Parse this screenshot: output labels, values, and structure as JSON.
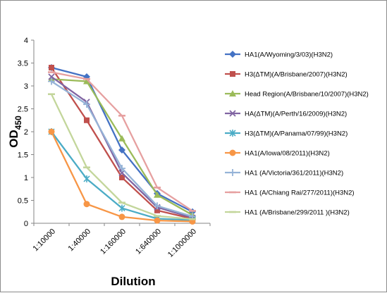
{
  "chart_data": {
    "type": "line",
    "categories": [
      "1:10000",
      "1:40000",
      "1:160000",
      "1:640000",
      "1:1000000"
    ],
    "ylim": [
      0,
      4
    ],
    "yticks": [
      "0",
      "0.5",
      "1",
      "1.5",
      "2",
      "2.5",
      "3",
      "3.5",
      "4"
    ],
    "xlabel": "Dilution",
    "ylabel": "OD",
    "ylabel_sub": "450",
    "grid": false,
    "legend_position": "right",
    "series": [
      {
        "name": "HA1(A/Wyoming/3/03)(H3N2)",
        "color": "#4472c4",
        "marker": "diamond",
        "values": [
          3.4,
          3.2,
          1.6,
          0.65,
          0.25
        ]
      },
      {
        "name": "H3(ΔTM)(A/Brisbane/2007)(H3N2)",
        "color": "#c0504d",
        "marker": "square",
        "values": [
          3.4,
          2.25,
          1.0,
          0.28,
          0.1
        ]
      },
      {
        "name": "Head Region(A/Brisbane/10/2007)(H3N2)",
        "color": "#9bbb59",
        "marker": "triangle",
        "values": [
          3.15,
          3.1,
          1.85,
          0.62,
          0.18
        ]
      },
      {
        "name": "HA(ΔTM)(A/Perth/16/2009)(H3N2)",
        "color": "#8064a2",
        "marker": "x",
        "values": [
          3.2,
          2.65,
          1.1,
          0.35,
          0.12
        ]
      },
      {
        "name": "H3(ΔTM)(A/Panama/07/99)(H3N2)",
        "color": "#4bacc6",
        "marker": "star",
        "values": [
          2.0,
          0.97,
          0.33,
          0.1,
          0.07
        ]
      },
      {
        "name": "HA1(A/Iowa/08/2011)(H3N2)",
        "color": "#f79646",
        "marker": "circle",
        "values": [
          2.0,
          0.42,
          0.14,
          0.06,
          0.04
        ]
      },
      {
        "name": "HA1 (A/Victoria/361/2011)(H3N2)",
        "color": "#95b3d7",
        "marker": "plus",
        "values": [
          3.1,
          2.6,
          1.2,
          0.38,
          0.15
        ]
      },
      {
        "name": "HA1 (A/Chiang Rai/277/2011)(H3N2)",
        "color": "#e6a0a0",
        "marker": "dash",
        "values": [
          3.3,
          3.15,
          2.35,
          0.78,
          0.27
        ]
      },
      {
        "name": "HA1 (A/Brisbane/299/2011 )(H3N2)",
        "color": "#c3d69b",
        "marker": "dash",
        "values": [
          2.82,
          1.22,
          0.45,
          0.16,
          0.09
        ]
      }
    ]
  }
}
